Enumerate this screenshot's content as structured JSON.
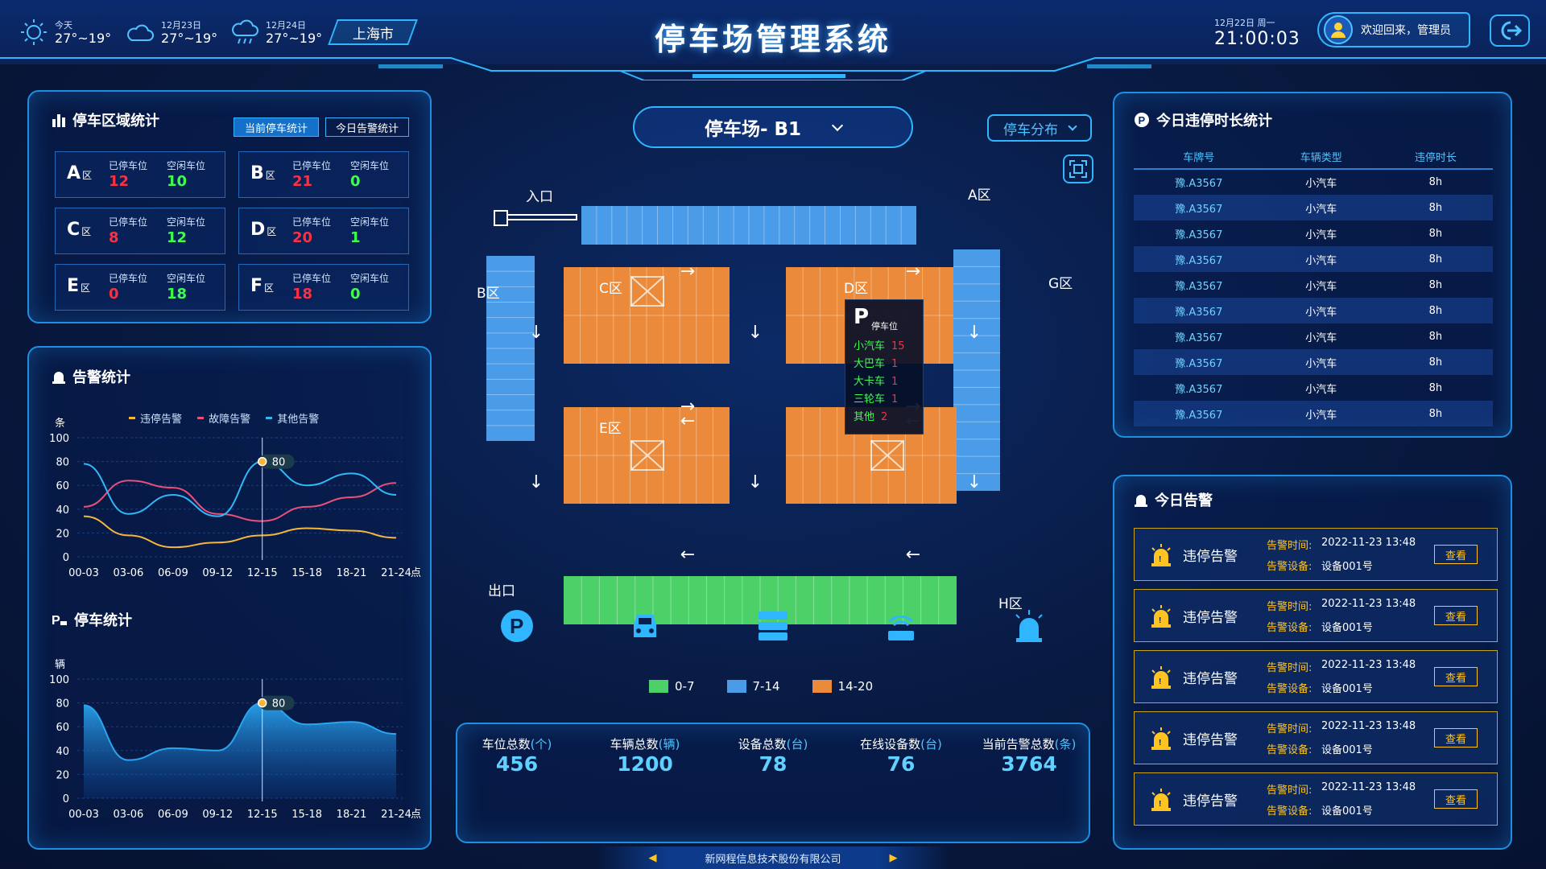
{
  "header": {
    "title": "停车场管理系统",
    "weather": [
      {
        "day": "今天",
        "temp": "27°~19°",
        "icon": "sun-icon"
      },
      {
        "day": "12月23日",
        "temp": "27°~19°",
        "icon": "cloud-icon"
      },
      {
        "day": "12月24日",
        "temp": "27°~19°",
        "icon": "rain-icon"
      }
    ],
    "city": "上海市",
    "date": "12月22日 周一",
    "time": "21:00:03",
    "welcome": "欢迎回来，管理员"
  },
  "zone_stats": {
    "title": "停车区域统计",
    "tab_current": "当前停车统计",
    "tab_alarm": "今日告警统计",
    "parked_label": "已停车位",
    "free_label": "空闲车位",
    "zone_suffix": "区",
    "zones": [
      {
        "name": "A",
        "parked": "12",
        "free": "10"
      },
      {
        "name": "B",
        "parked": "21",
        "free": "0"
      },
      {
        "name": "C",
        "parked": "8",
        "free": "12"
      },
      {
        "name": "D",
        "parked": "20",
        "free": "1"
      },
      {
        "name": "E",
        "parked": "0",
        "free": "18"
      },
      {
        "name": "F",
        "parked": "18",
        "free": "0"
      }
    ]
  },
  "alarm_chart": {
    "title": "告警统计",
    "chart_data": {
      "type": "line",
      "unit": "条",
      "categories": [
        "00-03",
        "03-06",
        "06-09",
        "09-12",
        "12-15",
        "15-18",
        "18-21",
        "21-24"
      ],
      "xunit": "点",
      "ylim": [
        0,
        100
      ],
      "yticks": [
        0,
        20,
        40,
        60,
        80,
        100
      ],
      "highlight": {
        "category": "12-15",
        "value": 80
      },
      "series": [
        {
          "name": "违停告警",
          "color": "#f5b73b",
          "values": [
            34,
            18,
            8,
            12,
            18,
            24,
            22,
            16
          ]
        },
        {
          "name": "故障告警",
          "color": "#e8507a",
          "values": [
            42,
            64,
            58,
            36,
            30,
            42,
            50,
            62
          ]
        },
        {
          "name": "其他告警",
          "color": "#31b8f5",
          "values": [
            78,
            36,
            52,
            34,
            80,
            60,
            70,
            52
          ]
        }
      ]
    }
  },
  "parking_chart": {
    "title": "停车统计",
    "chart_data": {
      "type": "area",
      "unit": "辆",
      "categories": [
        "00-03",
        "03-06",
        "06-09",
        "09-12",
        "12-15",
        "15-18",
        "18-21",
        "21-24"
      ],
      "xunit": "点",
      "ylim": [
        0,
        100
      ],
      "yticks": [
        0,
        20,
        40,
        60,
        80,
        100
      ],
      "highlight": {
        "category": "12-15",
        "value": 80
      },
      "series": [
        {
          "color": "#2aa5f0",
          "values": [
            78,
            32,
            42,
            40,
            80,
            62,
            64,
            54
          ]
        }
      ]
    }
  },
  "lot": {
    "selector": "停车场- B1",
    "distribution": "停车分布",
    "entrance": "入口",
    "exit": "出口",
    "zones": {
      "A": "A区",
      "B": "B区",
      "C": "C区",
      "D": "D区",
      "E": "E区",
      "G": "G区",
      "H": "H区"
    },
    "tooltip": {
      "title": "P",
      "subtitle": "停车位",
      "rows": [
        {
          "label": "小汽车",
          "value": "15"
        },
        {
          "label": "大巴车",
          "value": "1"
        },
        {
          "label": "大卡车",
          "value": "1"
        },
        {
          "label": "三轮车",
          "value": "1"
        },
        {
          "label": "其他",
          "value": "2"
        }
      ]
    },
    "legend": [
      {
        "label": "0-7",
        "color": "#4bd168"
      },
      {
        "label": "7-14",
        "color": "#4a9be8"
      },
      {
        "label": "14-20",
        "color": "#ea8a3a"
      }
    ]
  },
  "stats": [
    {
      "label": "车位总数",
      "unit": "(个)",
      "value": "456",
      "icon": "parking-icon"
    },
    {
      "label": "车辆总数",
      "unit": "(辆)",
      "value": "1200",
      "icon": "car-icon"
    },
    {
      "label": "设备总数",
      "unit": "(台)",
      "value": "78",
      "icon": "server-icon"
    },
    {
      "label": "在线设备数",
      "unit": "(台)",
      "value": "76",
      "icon": "router-icon"
    },
    {
      "label": "当前告警总数",
      "unit": "(条)",
      "value": "3764",
      "icon": "alarm-light-icon"
    }
  ],
  "violations": {
    "title": "今日违停时长统计",
    "headers": [
      "车牌号",
      "车辆类型",
      "违停时长"
    ],
    "rows": [
      [
        "豫.A3567",
        "小汽车",
        "8h"
      ],
      [
        "豫.A3567",
        "小汽车",
        "8h"
      ],
      [
        "豫.A3567",
        "小汽车",
        "8h"
      ],
      [
        "豫.A3567",
        "小汽车",
        "8h"
      ],
      [
        "豫.A3567",
        "小汽车",
        "8h"
      ],
      [
        "豫.A3567",
        "小汽车",
        "8h"
      ],
      [
        "豫.A3567",
        "小汽车",
        "8h"
      ],
      [
        "豫.A3567",
        "小汽车",
        "8h"
      ],
      [
        "豫.A3567",
        "小汽车",
        "8h"
      ],
      [
        "豫.A3567",
        "小汽车",
        "8h"
      ]
    ]
  },
  "today_alarms": {
    "title": "今日告警",
    "time_label": "告警时间:",
    "device_label": "告警设备:",
    "button": "查看",
    "items": [
      {
        "type": "违停告警",
        "time": "2022-11-23 13:48",
        "device": "设备001号"
      },
      {
        "type": "违停告警",
        "time": "2022-11-23 13:48",
        "device": "设备001号"
      },
      {
        "type": "违停告警",
        "time": "2022-11-23 13:48",
        "device": "设备001号"
      },
      {
        "type": "违停告警",
        "time": "2022-11-23 13:48",
        "device": "设备001号"
      },
      {
        "type": "违停告警",
        "time": "2022-11-23 13:48",
        "device": "设备001号"
      }
    ]
  },
  "footer": "新网程信息技术股份有限公司",
  "colors": {
    "accent": "#2fb6ff",
    "parked": "#ff2f3f",
    "free": "#3cff4c",
    "warning": "#ffc422"
  }
}
